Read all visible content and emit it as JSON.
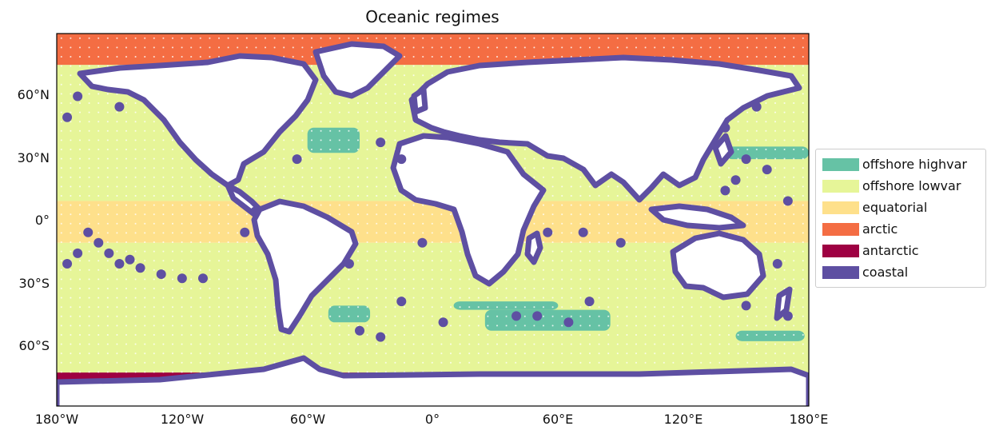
{
  "title": "Oceanic regimes",
  "colors": {
    "offshore_highvar": "#66c2a5",
    "offshore_lowvar": "#e6f598",
    "equatorial": "#fee08b",
    "arctic": "#f46d43",
    "antarctic": "#9e0142",
    "coastal": "#5e4fa2",
    "land": "#ffffff"
  },
  "axes": {
    "x_ticks": [
      "180°W",
      "120°W",
      "60°W",
      "0°",
      "60°E",
      "120°E",
      "180°E"
    ],
    "y_ticks": [
      "60°N",
      "30°N",
      "0°",
      "30°S",
      "60°S"
    ]
  },
  "legend": [
    {
      "label": "offshore highvar",
      "color": "#66c2a5"
    },
    {
      "label": "offshore lowvar",
      "color": "#e6f598"
    },
    {
      "label": "equatorial",
      "color": "#fee08b"
    },
    {
      "label": "arctic",
      "color": "#f46d43"
    },
    {
      "label": "antarctic",
      "color": "#9e0142"
    },
    {
      "label": "coastal",
      "color": "#5e4fa2"
    }
  ],
  "chart_data": {
    "type": "heatmap",
    "projection": "PlateCarree",
    "xlim": [
      -180,
      180
    ],
    "ylim": [
      -88,
      90
    ],
    "x_ticks": [
      -180,
      -120,
      -60,
      0,
      60,
      120,
      180
    ],
    "y_ticks": [
      60,
      30,
      0,
      -30,
      -60
    ],
    "bands": [
      {
        "regime": "arctic",
        "lat_range": [
          75,
          90
        ]
      },
      {
        "regime": "offshore lowvar",
        "lat_range": [
          10,
          75
        ]
      },
      {
        "regime": "equatorial",
        "lat_range": [
          -10,
          10
        ]
      },
      {
        "regime": "offshore lowvar",
        "lat_range": [
          -76,
          -10
        ]
      },
      {
        "regime": "antarctic",
        "lat_range": [
          -80,
          -72
        ]
      }
    ],
    "highvar_patches": [
      {
        "lon": [
          -60,
          -35
        ],
        "lat": [
          33,
          45
        ]
      },
      {
        "lon": [
          140,
          180
        ],
        "lat": [
          30,
          36
        ]
      },
      {
        "lon": [
          -50,
          -30
        ],
        "lat": [
          -48,
          -40
        ]
      },
      {
        "lon": [
          10,
          60
        ],
        "lat": [
          -42,
          -38
        ]
      },
      {
        "lon": [
          25,
          85
        ],
        "lat": [
          -52,
          -42
        ]
      },
      {
        "lon": [
          145,
          178
        ],
        "lat": [
          -57,
          -52
        ]
      }
    ]
  }
}
